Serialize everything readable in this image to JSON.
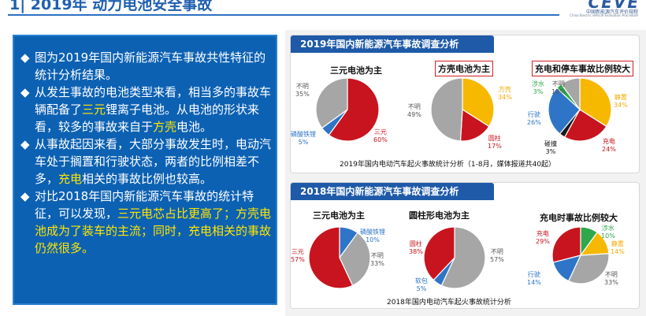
{
  "header": {
    "title": "1| 2019年 动力电池安全事故",
    "logo_mark": "CEVE",
    "logo_sub1": "中国新能源汽车评价规程",
    "logo_sub2": "China Electric Vehicle Evaluation Procedure"
  },
  "bullets": [
    {
      "mark": "◆",
      "parts": [
        {
          "t": "图为2019年国内新能源汽车事故共性特征的统计分析结果。",
          "hl": false
        }
      ]
    },
    {
      "mark": "◆",
      "parts": [
        {
          "t": "从发生事故的电池类型来看，相当多的事故车辆配备了",
          "hl": false
        },
        {
          "t": "三元",
          "hl": true
        },
        {
          "t": "锂离子电池。从电池的形状来看，较多的事故来自于",
          "hl": false
        },
        {
          "t": "方壳",
          "hl": true
        },
        {
          "t": "电池。",
          "hl": false
        }
      ]
    },
    {
      "mark": "◆",
      "parts": [
        {
          "t": "从事故起因来看，大部分事故发生时，电动汽车处于搁置和行驶状态，两者的比例相差不多，",
          "hl": false
        },
        {
          "t": "充电",
          "hl": true
        },
        {
          "t": "相关的事故比例也较高。",
          "hl": false
        }
      ]
    },
    {
      "mark": "◆",
      "parts": [
        {
          "t": "对比2018年国内新能源汽车事故的统计特征，可以发现，",
          "hl": false
        },
        {
          "t": "三元电芯占比更高了；方壳电池成为了装车的主流；同时，充电相关的事故仍然很多。",
          "hl": true
        }
      ]
    }
  ],
  "sections": [
    {
      "heading": "2019年国内新能源汽车事故调查分析",
      "caption": "2019年国内电动汽车起火事故统计分析（1-8月，媒体报道共40起）"
    },
    {
      "heading": "2018年国内新能源汽车事故调查分析",
      "caption": "2018年国内电动汽车起火事故统计分析"
    }
  ],
  "chart_data": [
    {
      "type": "pie",
      "title": "三元电池为主",
      "labels": [
        "三元",
        "磷酸铁锂",
        "不明"
      ],
      "values": [
        60,
        5,
        35
      ],
      "colors": [
        "#c8141e",
        "#2e75c8",
        "#a6a6a6"
      ]
    },
    {
      "type": "pie",
      "title": "方壳电池为主",
      "labels": [
        "方壳",
        "圆柱",
        "不明"
      ],
      "values": [
        34,
        17,
        49
      ],
      "colors": [
        "#f7b800",
        "#c8141e",
        "#a6a6a6"
      ]
    },
    {
      "type": "pie",
      "title": "充电和停车事故比例较大",
      "labels": [
        "静置",
        "充电",
        "碰撞",
        "行驶",
        "涉水",
        "不明"
      ],
      "values": [
        34,
        24,
        3,
        26,
        3,
        10
      ],
      "colors": [
        "#f7b800",
        "#c8141e",
        "#1a1a1a",
        "#2e75c8",
        "#2ea84a",
        "#a6a6a6"
      ]
    },
    {
      "type": "pie",
      "title": "三元电池为主",
      "labels": [
        "磷酸铁锂",
        "不明",
        "三元"
      ],
      "values": [
        10,
        33,
        57
      ],
      "colors": [
        "#2e75c8",
        "#a6a6a6",
        "#c8141e"
      ]
    },
    {
      "type": "pie",
      "title": "圆柱形电池为主",
      "labels": [
        "不明",
        "软包",
        "圆柱"
      ],
      "values": [
        57,
        5,
        38
      ],
      "colors": [
        "#a6a6a6",
        "#2e75c8",
        "#c8141e"
      ]
    },
    {
      "type": "pie",
      "title": "充电时事故比例较大",
      "labels": [
        "涉水",
        "静置",
        "不明",
        "行驶",
        "充电"
      ],
      "values": [
        10,
        14,
        33,
        14,
        29
      ],
      "colors": [
        "#2ea84a",
        "#f7b800",
        "#a6a6a6",
        "#2e75c8",
        "#c8141e"
      ]
    }
  ]
}
